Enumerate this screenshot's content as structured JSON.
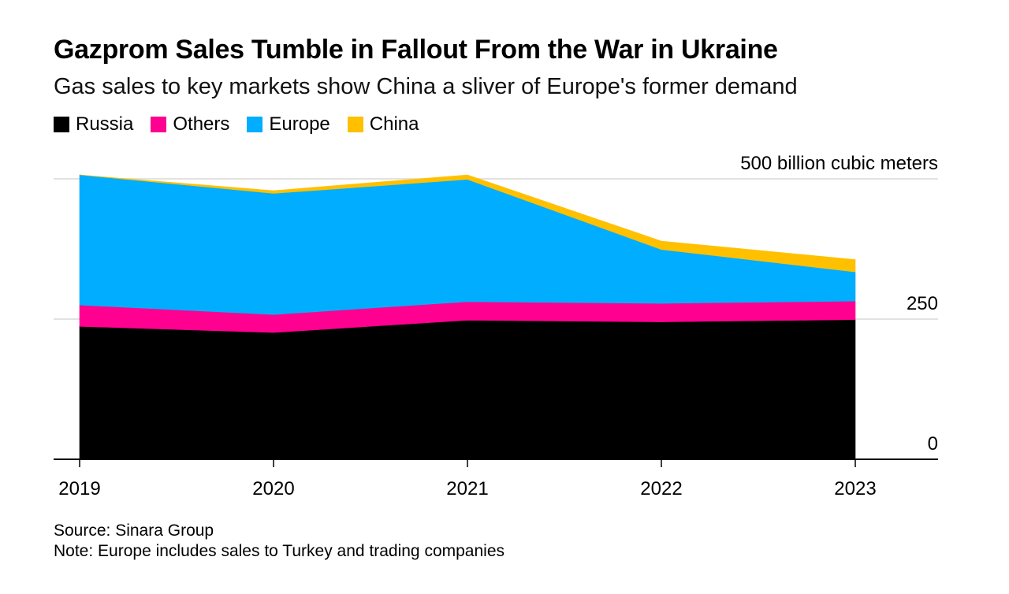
{
  "chart_data": {
    "type": "area",
    "stacked": true,
    "title": "Gazprom Sales Tumble in Fallout From the War in Ukraine",
    "subtitle": "Gas sales to key markets show China a sliver of Europe's former demand",
    "x": [
      "2019",
      "2020",
      "2021",
      "2022",
      "2023"
    ],
    "series": [
      {
        "name": "Russia",
        "color": "#000000",
        "values": [
          237,
          226,
          248,
          245,
          249
        ]
      },
      {
        "name": "Others",
        "color": "#ff0090",
        "values": [
          38,
          32,
          33,
          33,
          33
        ]
      },
      {
        "name": "Europe",
        "color": "#00adff",
        "values": [
          232,
          216,
          218,
          96,
          52
        ]
      },
      {
        "name": "China",
        "color": "#ffc000",
        "values": [
          0,
          5,
          8,
          15,
          22
        ]
      }
    ],
    "legend": [
      "Russia",
      "Others",
      "Europe",
      "China"
    ],
    "legend_placement": "top-left",
    "y_ticks": [
      {
        "value": 0,
        "label": "0"
      },
      {
        "value": 250,
        "label": "250"
      },
      {
        "value": 500,
        "label": "500 billion cubic meters"
      }
    ],
    "ylim": [
      0,
      500
    ],
    "grid": true,
    "source": "Source: Sinara Group",
    "note": "Note: Europe includes sales to Turkey and trading companies"
  }
}
